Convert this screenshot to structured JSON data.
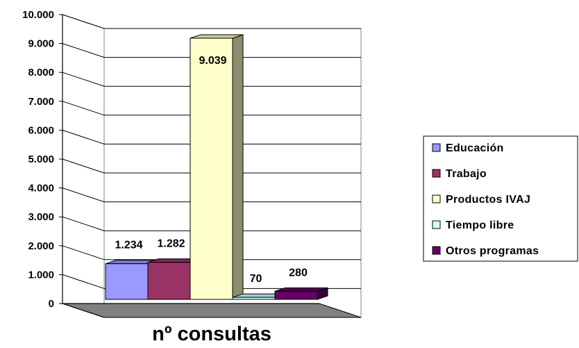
{
  "chart_data": {
    "type": "bar",
    "subtype": "3d-clustered-column",
    "xlabel": "nº consultas",
    "ylabel": "",
    "ylim": [
      0,
      10000
    ],
    "yticks": [
      "0",
      "1.000",
      "2.000",
      "3.000",
      "4.000",
      "5.000",
      "6.000",
      "7.000",
      "8.000",
      "9.000",
      "10.000"
    ],
    "grid": true,
    "legend_position": "right",
    "series": [
      {
        "name": "Educación",
        "value": 1234,
        "label": "1.234",
        "color": "#9999ff"
      },
      {
        "name": "Trabajo",
        "value": 1282,
        "label": "1.282",
        "color": "#993366"
      },
      {
        "name": "Productos IVAJ",
        "value": 9039,
        "label": "9.039",
        "color": "#ffffcc"
      },
      {
        "name": "Tiempo libre",
        "value": 70,
        "label": "70",
        "color": "#ccffff"
      },
      {
        "name": "Otros programas",
        "value": 280,
        "label": "280",
        "color": "#660066"
      }
    ]
  }
}
